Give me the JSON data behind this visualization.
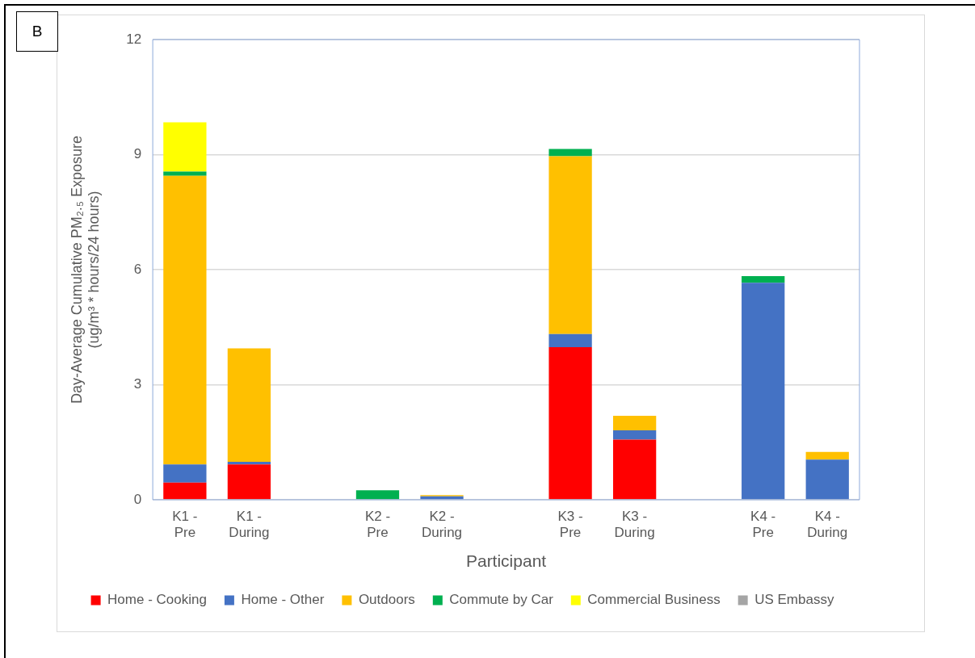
{
  "chart_data": {
    "type": "bar",
    "stacked": true,
    "xlabel": "Participant",
    "ylabel": "Day-Average Cumulative PM₂.₅ Exposure\n(ug/m³ * hours/24 hours)",
    "categories": [
      "K1 - Pre",
      "K1 - During",
      null,
      "K2 - Pre",
      "K2 - During",
      null,
      "K3 - Pre",
      "K3 - During",
      null,
      "K4 - Pre",
      "K4 - During"
    ],
    "series": [
      {
        "name": "Home - Cooking",
        "color": "#ff0000",
        "values": [
          0.45,
          0.92,
          null,
          null,
          null,
          null,
          3.98,
          1.57,
          null,
          null,
          null
        ]
      },
      {
        "name": "Home - Other",
        "color": "#4472c4",
        "values": [
          0.47,
          0.07,
          null,
          null,
          0.09,
          null,
          0.34,
          0.24,
          null,
          5.66,
          1.05
        ]
      },
      {
        "name": "Outdoors",
        "color": "#ffc000",
        "values": [
          7.53,
          2.96,
          null,
          null,
          0.03,
          null,
          4.64,
          0.38,
          null,
          null,
          0.2
        ]
      },
      {
        "name": "Commute by Car",
        "color": "#00b050",
        "values": [
          0.11,
          null,
          null,
          0.25,
          null,
          null,
          0.19,
          null,
          null,
          0.17,
          null
        ]
      },
      {
        "name": "Commercial Business",
        "color": "#ffff00",
        "values": [
          1.28,
          null,
          null,
          null,
          null,
          null,
          null,
          null,
          null,
          null,
          null
        ]
      },
      {
        "name": "US Embassy",
        "color": "#a5a5a5",
        "values": [
          null,
          null,
          null,
          null,
          null,
          null,
          null,
          null,
          null,
          null,
          null
        ]
      }
    ],
    "ylim": [
      0,
      12
    ],
    "yticks": [
      0,
      3,
      6,
      9,
      12
    ],
    "grid": "y",
    "legend": "bottom",
    "annotations": [
      "B"
    ]
  }
}
